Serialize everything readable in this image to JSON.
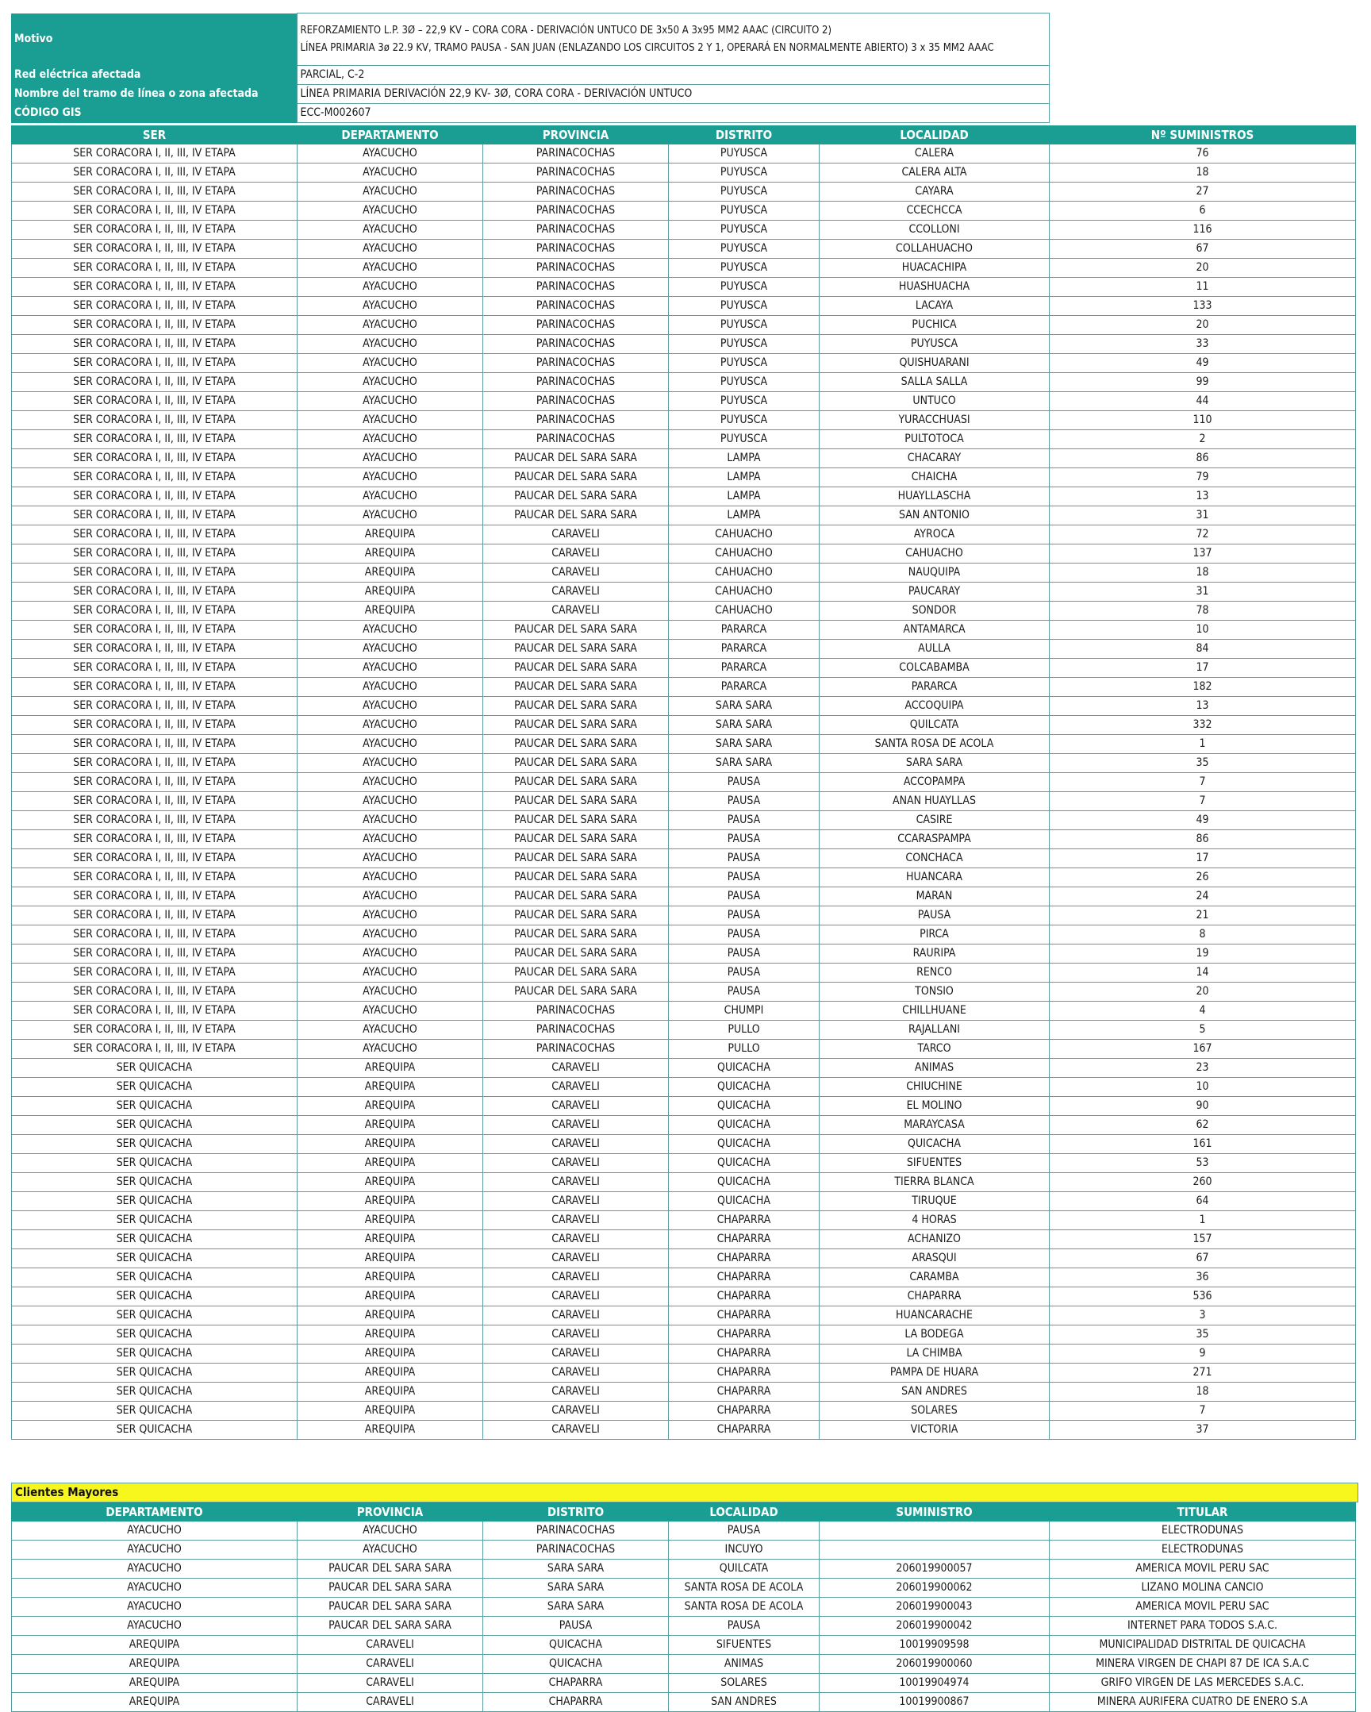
{
  "info": [
    {
      "label": "Motivo",
      "value": "REFORZAMIENTO L.P. 3Ø – 22,9 KV – CORA CORA - DERIVACIÓN UNTUCO DE 3x50 A 3x95 MM2 AAAC (CIRCUITO 2)\nLÍNEA PRIMARIA 3ø 22.9 KV, TRAMO PAUSA - SAN JUAN (ENLAZANDO LOS CIRCUITOS 2 Y 1, OPERARÁ EN NORMALMENTE ABIERTO) 3 x 35 MM2 AAAC"
    },
    {
      "label": "Red eléctrica afectada",
      "value": "PARCIAL, C-2"
    },
    {
      "label": "Nombre del tramo de línea o zona afectada",
      "value": "LÍNEA PRIMARIA DERIVACIÓN 22,9 KV- 3Ø, CORA CORA - DERIVACIÓN UNTUCO"
    },
    {
      "label": "CÓDIGO GIS",
      "value": "ECC-M002607"
    }
  ],
  "main_table": {
    "headers": [
      "SER",
      "DEPARTAMENTO",
      "PROVINCIA",
      "DISTRITO",
      "LOCALIDAD",
      "Nº SUMINISTROS"
    ],
    "rows": [
      [
        "SER CORACORA I, II, III, IV ETAPA",
        "AYACUCHO",
        "PARINACOCHAS",
        "PUYUSCA",
        "CALERA",
        "76"
      ],
      [
        "SER CORACORA I, II, III, IV ETAPA",
        "AYACUCHO",
        "PARINACOCHAS",
        "PUYUSCA",
        "CALERA ALTA",
        "18"
      ],
      [
        "SER CORACORA I, II, III, IV ETAPA",
        "AYACUCHO",
        "PARINACOCHAS",
        "PUYUSCA",
        "CAYARA",
        "27"
      ],
      [
        "SER CORACORA I, II, III, IV ETAPA",
        "AYACUCHO",
        "PARINACOCHAS",
        "PUYUSCA",
        "CCECHCCA",
        "6"
      ],
      [
        "SER CORACORA I, II, III, IV ETAPA",
        "AYACUCHO",
        "PARINACOCHAS",
        "PUYUSCA",
        "CCOLLONI",
        "116"
      ],
      [
        "SER CORACORA I, II, III, IV ETAPA",
        "AYACUCHO",
        "PARINACOCHAS",
        "PUYUSCA",
        "COLLAHUACHO",
        "67"
      ],
      [
        "SER CORACORA I, II, III, IV ETAPA",
        "AYACUCHO",
        "PARINACOCHAS",
        "PUYUSCA",
        "HUACACHIPA",
        "20"
      ],
      [
        "SER CORACORA I, II, III, IV ETAPA",
        "AYACUCHO",
        "PARINACOCHAS",
        "PUYUSCA",
        "HUASHUACHA",
        "11"
      ],
      [
        "SER CORACORA I, II, III, IV ETAPA",
        "AYACUCHO",
        "PARINACOCHAS",
        "PUYUSCA",
        "LACAYA",
        "133"
      ],
      [
        "SER CORACORA I, II, III, IV ETAPA",
        "AYACUCHO",
        "PARINACOCHAS",
        "PUYUSCA",
        "PUCHICA",
        "20"
      ],
      [
        "SER CORACORA I, II, III, IV ETAPA",
        "AYACUCHO",
        "PARINACOCHAS",
        "PUYUSCA",
        "PUYUSCA",
        "33"
      ],
      [
        "SER CORACORA I, II, III, IV ETAPA",
        "AYACUCHO",
        "PARINACOCHAS",
        "PUYUSCA",
        "QUISHUARANI",
        "49"
      ],
      [
        "SER CORACORA I, II, III, IV ETAPA",
        "AYACUCHO",
        "PARINACOCHAS",
        "PUYUSCA",
        "SALLA SALLA",
        "99"
      ],
      [
        "SER CORACORA I, II, III, IV ETAPA",
        "AYACUCHO",
        "PARINACOCHAS",
        "PUYUSCA",
        "UNTUCO",
        "44"
      ],
      [
        "SER CORACORA I, II, III, IV ETAPA",
        "AYACUCHO",
        "PARINACOCHAS",
        "PUYUSCA",
        "YURACCHUASI",
        "110"
      ],
      [
        "SER CORACORA I, II, III, IV ETAPA",
        "AYACUCHO",
        "PARINACOCHAS",
        "PUYUSCA",
        "PULTOTOCA",
        "2"
      ],
      [
        "SER CORACORA I, II, III, IV ETAPA",
        "AYACUCHO",
        "PAUCAR DEL SARA SARA",
        "LAMPA",
        "CHACARAY",
        "86"
      ],
      [
        "SER CORACORA I, II, III, IV ETAPA",
        "AYACUCHO",
        "PAUCAR DEL SARA SARA",
        "LAMPA",
        "CHAICHA",
        "79"
      ],
      [
        "SER CORACORA I, II, III, IV ETAPA",
        "AYACUCHO",
        "PAUCAR DEL SARA SARA",
        "LAMPA",
        "HUAYLLASCHA",
        "13"
      ],
      [
        "SER CORACORA I, II, III, IV ETAPA",
        "AYACUCHO",
        "PAUCAR DEL SARA SARA",
        "LAMPA",
        "SAN ANTONIO",
        "31"
      ],
      [
        "SER CORACORA I, II, III, IV ETAPA",
        "AREQUIPA",
        "CARAVELI",
        "CAHUACHO",
        "AYROCA",
        "72"
      ],
      [
        "SER CORACORA I, II, III, IV ETAPA",
        "AREQUIPA",
        "CARAVELI",
        "CAHUACHO",
        "CAHUACHO",
        "137"
      ],
      [
        "SER CORACORA I, II, III, IV ETAPA",
        "AREQUIPA",
        "CARAVELI",
        "CAHUACHO",
        "NAUQUIPA",
        "18"
      ],
      [
        "SER CORACORA I, II, III, IV ETAPA",
        "AREQUIPA",
        "CARAVELI",
        "CAHUACHO",
        "PAUCARAY",
        "31"
      ],
      [
        "SER CORACORA I, II, III, IV ETAPA",
        "AREQUIPA",
        "CARAVELI",
        "CAHUACHO",
        "SONDOR",
        "78"
      ],
      [
        "SER CORACORA I, II, III, IV ETAPA",
        "AYACUCHO",
        "PAUCAR DEL SARA SARA",
        "PARARCA",
        "ANTAMARCA",
        "10"
      ],
      [
        "SER CORACORA I, II, III, IV ETAPA",
        "AYACUCHO",
        "PAUCAR DEL SARA SARA",
        "PARARCA",
        "AULLA",
        "84"
      ],
      [
        "SER CORACORA I, II, III, IV ETAPA",
        "AYACUCHO",
        "PAUCAR DEL SARA SARA",
        "PARARCA",
        "COLCABAMBA",
        "17"
      ],
      [
        "SER CORACORA I, II, III, IV ETAPA",
        "AYACUCHO",
        "PAUCAR DEL SARA SARA",
        "PARARCA",
        "PARARCA",
        "182"
      ],
      [
        "SER CORACORA I, II, III, IV ETAPA",
        "AYACUCHO",
        "PAUCAR DEL SARA SARA",
        "SARA SARA",
        "ACCOQUIPA",
        "13"
      ],
      [
        "SER CORACORA I, II, III, IV ETAPA",
        "AYACUCHO",
        "PAUCAR DEL SARA SARA",
        "SARA SARA",
        "QUILCATA",
        "332"
      ],
      [
        "SER CORACORA I, II, III, IV ETAPA",
        "AYACUCHO",
        "PAUCAR DEL SARA SARA",
        "SARA SARA",
        "SANTA ROSA DE ACOLA",
        "1"
      ],
      [
        "SER CORACORA I, II, III, IV ETAPA",
        "AYACUCHO",
        "PAUCAR DEL SARA SARA",
        "SARA SARA",
        "SARA SARA",
        "35"
      ],
      [
        "SER CORACORA I, II, III, IV ETAPA",
        "AYACUCHO",
        "PAUCAR DEL SARA SARA",
        "PAUSA",
        "ACCOPAMPA",
        "7"
      ],
      [
        "SER CORACORA I, II, III, IV ETAPA",
        "AYACUCHO",
        "PAUCAR DEL SARA SARA",
        "PAUSA",
        "ANAN HUAYLLAS",
        "7"
      ],
      [
        "SER CORACORA I, II, III, IV ETAPA",
        "AYACUCHO",
        "PAUCAR DEL SARA SARA",
        "PAUSA",
        "CASIRE",
        "49"
      ],
      [
        "SER CORACORA I, II, III, IV ETAPA",
        "AYACUCHO",
        "PAUCAR DEL SARA SARA",
        "PAUSA",
        "CCARASPAMPA",
        "86"
      ],
      [
        "SER CORACORA I, II, III, IV ETAPA",
        "AYACUCHO",
        "PAUCAR DEL SARA SARA",
        "PAUSA",
        "CONCHACA",
        "17"
      ],
      [
        "SER CORACORA I, II, III, IV ETAPA",
        "AYACUCHO",
        "PAUCAR DEL SARA SARA",
        "PAUSA",
        "HUANCARA",
        "26"
      ],
      [
        "SER CORACORA I, II, III, IV ETAPA",
        "AYACUCHO",
        "PAUCAR DEL SARA SARA",
        "PAUSA",
        "MARAN",
        "24"
      ],
      [
        "SER CORACORA I, II, III, IV ETAPA",
        "AYACUCHO",
        "PAUCAR DEL SARA SARA",
        "PAUSA",
        "PAUSA",
        "21"
      ],
      [
        "SER CORACORA I, II, III, IV ETAPA",
        "AYACUCHO",
        "PAUCAR DEL SARA SARA",
        "PAUSA",
        "PIRCA",
        "8"
      ],
      [
        "SER CORACORA I, II, III, IV ETAPA",
        "AYACUCHO",
        "PAUCAR DEL SARA SARA",
        "PAUSA",
        "RAURIPA",
        "19"
      ],
      [
        "SER CORACORA I, II, III, IV ETAPA",
        "AYACUCHO",
        "PAUCAR DEL SARA SARA",
        "PAUSA",
        "RENCO",
        "14"
      ],
      [
        "SER CORACORA I, II, III, IV ETAPA",
        "AYACUCHO",
        "PAUCAR DEL SARA SARA",
        "PAUSA",
        "TONSIO",
        "20"
      ],
      [
        "SER CORACORA I, II, III, IV ETAPA",
        "AYACUCHO",
        "PARINACOCHAS",
        "CHUMPI",
        "CHILLHUANE",
        "4"
      ],
      [
        "SER CORACORA I, II, III, IV ETAPA",
        "AYACUCHO",
        "PARINACOCHAS",
        "PULLO",
        "RAJALLANI",
        "5"
      ],
      [
        "SER CORACORA I, II, III, IV ETAPA",
        "AYACUCHO",
        "PARINACOCHAS",
        "PULLO",
        "TARCO",
        "167"
      ],
      [
        "SER QUICACHA",
        "AREQUIPA",
        "CARAVELI",
        "QUICACHA",
        "ANIMAS",
        "23"
      ],
      [
        "SER QUICACHA",
        "AREQUIPA",
        "CARAVELI",
        "QUICACHA",
        "CHIUCHINE",
        "10"
      ],
      [
        "SER QUICACHA",
        "AREQUIPA",
        "CARAVELI",
        "QUICACHA",
        "EL MOLINO",
        "90"
      ],
      [
        "SER QUICACHA",
        "AREQUIPA",
        "CARAVELI",
        "QUICACHA",
        "MARAYCASA",
        "62"
      ],
      [
        "SER QUICACHA",
        "AREQUIPA",
        "CARAVELI",
        "QUICACHA",
        "QUICACHA",
        "161"
      ],
      [
        "SER QUICACHA",
        "AREQUIPA",
        "CARAVELI",
        "QUICACHA",
        "SIFUENTES",
        "53"
      ],
      [
        "SER QUICACHA",
        "AREQUIPA",
        "CARAVELI",
        "QUICACHA",
        "TIERRA BLANCA",
        "260"
      ],
      [
        "SER QUICACHA",
        "AREQUIPA",
        "CARAVELI",
        "QUICACHA",
        "TIRUQUE",
        "64"
      ],
      [
        "SER QUICACHA",
        "AREQUIPA",
        "CARAVELI",
        "CHAPARRA",
        "4 HORAS",
        "1"
      ],
      [
        "SER QUICACHA",
        "AREQUIPA",
        "CARAVELI",
        "CHAPARRA",
        "ACHANIZO",
        "157"
      ],
      [
        "SER QUICACHA",
        "AREQUIPA",
        "CARAVELI",
        "CHAPARRA",
        "ARASQUI",
        "67"
      ],
      [
        "SER QUICACHA",
        "AREQUIPA",
        "CARAVELI",
        "CHAPARRA",
        "CARAMBA",
        "36"
      ],
      [
        "SER QUICACHA",
        "AREQUIPA",
        "CARAVELI",
        "CHAPARRA",
        "CHAPARRA",
        "536"
      ],
      [
        "SER QUICACHA",
        "AREQUIPA",
        "CARAVELI",
        "CHAPARRA",
        "HUANCARACHE",
        "3"
      ],
      [
        "SER QUICACHA",
        "AREQUIPA",
        "CARAVELI",
        "CHAPARRA",
        "LA BODEGA",
        "35"
      ],
      [
        "SER QUICACHA",
        "AREQUIPA",
        "CARAVELI",
        "CHAPARRA",
        "LA CHIMBA",
        "9"
      ],
      [
        "SER QUICACHA",
        "AREQUIPA",
        "CARAVELI",
        "CHAPARRA",
        "PAMPA DE HUARA",
        "271"
      ],
      [
        "SER QUICACHA",
        "AREQUIPA",
        "CARAVELI",
        "CHAPARRA",
        "SAN ANDRES",
        "18"
      ],
      [
        "SER QUICACHA",
        "AREQUIPA",
        "CARAVELI",
        "CHAPARRA",
        "SOLARES",
        "7"
      ],
      [
        "SER QUICACHA",
        "AREQUIPA",
        "CARAVELI",
        "CHAPARRA",
        "VICTORIA",
        "37"
      ]
    ]
  },
  "clientes_mayores": {
    "title": "Clientes Mayores",
    "headers": [
      "DEPARTAMENTO",
      "PROVINCIA",
      "DISTRITO",
      "LOCALIDAD",
      "SUMINISTRO",
      "TITULAR"
    ],
    "rows": [
      [
        "AYACUCHO",
        "AYACUCHO",
        "PARINACOCHAS",
        "PAUSA",
        "",
        "ELECTRODUNAS"
      ],
      [
        "AYACUCHO",
        "AYACUCHO",
        "PARINACOCHAS",
        "INCUYO",
        "",
        "ELECTRODUNAS"
      ],
      [
        "AYACUCHO",
        "PAUCAR DEL SARA SARA",
        "SARA SARA",
        "QUILCATA",
        "206019900057",
        "AMERICA MOVIL PERU SAC"
      ],
      [
        "AYACUCHO",
        "PAUCAR DEL SARA SARA",
        "SARA SARA",
        "SANTA ROSA DE ACOLA",
        "206019900062",
        "LIZANO MOLINA CANCIO"
      ],
      [
        "AYACUCHO",
        "PAUCAR DEL SARA SARA",
        "SARA SARA",
        "SANTA ROSA DE ACOLA",
        "206019900043",
        "AMERICA MOVIL PERU SAC"
      ],
      [
        "AYACUCHO",
        "PAUCAR DEL SARA SARA",
        "PAUSA",
        "PAUSA",
        "206019900042",
        "INTERNET PARA TODOS S.A.C."
      ],
      [
        "AREQUIPA",
        "CARAVELI",
        "QUICACHA",
        "SIFUENTES",
        "10019909598",
        "MUNICIPALIDAD DISTRITAL DE QUICACHA"
      ],
      [
        "AREQUIPA",
        "CARAVELI",
        "QUICACHA",
        "ANIMAS",
        "206019900060",
        "MINERA VIRGEN DE CHAPI 87 DE ICA S.A.C"
      ],
      [
        "AREQUIPA",
        "CARAVELI",
        "CHAPARRA",
        "SOLARES",
        "10019904974",
        "GRIFO VIRGEN DE LAS MERCEDES S.A.C."
      ],
      [
        "AREQUIPA",
        "CARAVELI",
        "CHAPARRA",
        "SAN ANDRES",
        "10019900867",
        "MINERA AURIFERA CUATRO DE ENERO S.A"
      ]
    ]
  }
}
